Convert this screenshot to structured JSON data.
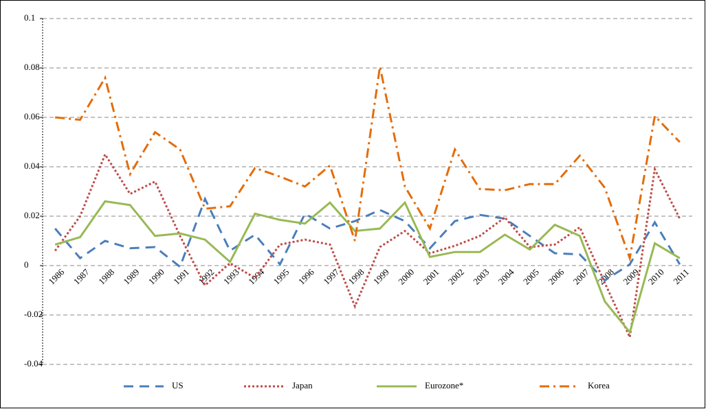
{
  "chart_data": {
    "type": "line",
    "categories": [
      "1986",
      "1987",
      "1988",
      "1989",
      "1990",
      "1991",
      "1992",
      "1993",
      "1994",
      "1995",
      "1996",
      "1997",
      "1998",
      "1999",
      "2000",
      "2001",
      "2002",
      "2003",
      "2004",
      "2005",
      "2006",
      "2007",
      "2008",
      "2009",
      "2010",
      "2011"
    ],
    "series": [
      {
        "name": "US",
        "color": "#4a7ebb",
        "values": [
          0.015,
          0.003,
          0.01,
          0.007,
          0.0075,
          -0.0005,
          0.027,
          0.006,
          0.0125,
          0.0005,
          0.021,
          0.015,
          0.018,
          0.0225,
          0.018,
          0.007,
          0.018,
          0.0205,
          0.019,
          0.012,
          0.005,
          0.0045,
          -0.006,
          0.0005,
          0.0175,
          0.0005
        ]
      },
      {
        "name": "Japan",
        "color": "#be4b48",
        "values": [
          0.006,
          0.02,
          0.045,
          0.029,
          0.034,
          0.012,
          -0.008,
          0.001,
          -0.005,
          0.0085,
          0.0105,
          0.0085,
          -0.0165,
          0.0075,
          0.014,
          0.005,
          0.008,
          0.012,
          0.0195,
          0.0075,
          0.0085,
          0.0155,
          -0.007,
          -0.029,
          0.039,
          0.019
        ]
      },
      {
        "name": "Eurozone*",
        "color": "#98b954",
        "values": [
          0.0085,
          0.0115,
          0.026,
          0.0245,
          0.012,
          0.013,
          0.0105,
          0.0015,
          0.021,
          0.0185,
          0.017,
          0.0255,
          0.014,
          0.015,
          0.0255,
          0.0035,
          0.0055,
          0.0055,
          0.0125,
          0.0065,
          0.0165,
          0.012,
          -0.0145,
          -0.027,
          0.009,
          0.003
        ]
      },
      {
        "name": "Korea",
        "color": "#e46c0a",
        "values": [
          0.06,
          0.059,
          0.076,
          0.037,
          0.054,
          0.047,
          0.023,
          0.024,
          0.0395,
          0.036,
          0.032,
          0.0405,
          0.01,
          0.0805,
          0.032,
          0.015,
          0.047,
          0.031,
          0.0305,
          0.033,
          0.033,
          0.0445,
          0.0315,
          0.003,
          0.0605,
          0.05
        ]
      }
    ],
    "ylim": [
      -0.04,
      0.1
    ],
    "yticks": [
      0.1,
      0.08,
      0.06,
      0.04,
      0.02,
      0,
      -0.02,
      -0.04
    ],
    "grid": true
  }
}
